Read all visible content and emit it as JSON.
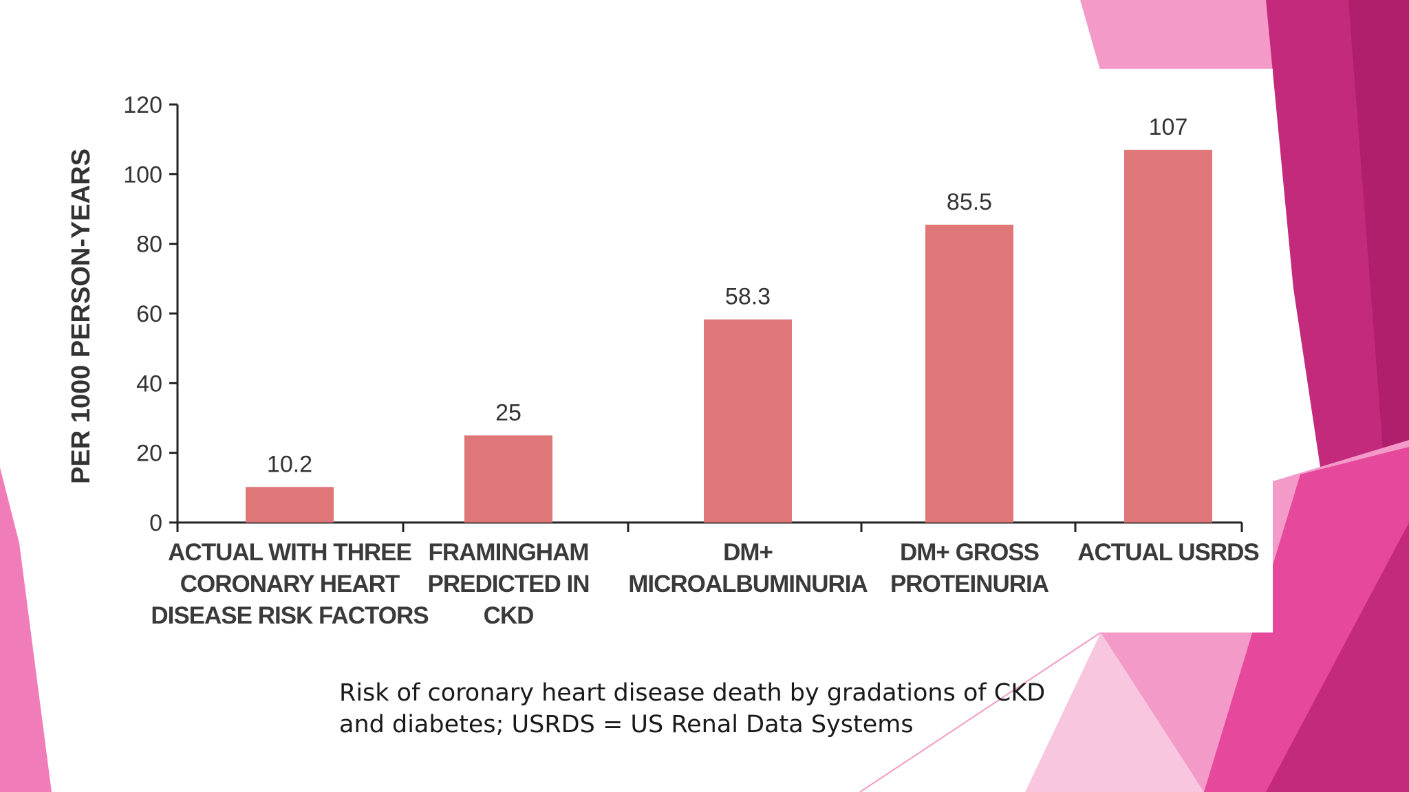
{
  "caption": {
    "line1": "Risk of coronary heart disease death by gradations of CKD",
    "line2": "and diabetes; USRDS = US Renal Data Systems"
  },
  "theme": {
    "bar_color": "#df7779",
    "accent_dark": "#bc2474",
    "accent_mid": "#e6489c",
    "accent_light": "#f39ac9",
    "accent_pale": "#f8c7df"
  },
  "chart_data": {
    "type": "bar",
    "ylabel": "PER 1000 PERSON-YEARS",
    "xlabel": "",
    "ylim": [
      0,
      120
    ],
    "yticks": [
      0,
      20,
      40,
      60,
      80,
      100,
      120
    ],
    "grid": false,
    "legend": "none",
    "categories": [
      [
        "ACTUAL WITH THREE",
        "CORONARY HEART",
        "DISEASE RISK FACTORS"
      ],
      [
        "FRAMINGHAM",
        "PREDICTED IN",
        "CKD"
      ],
      [
        "DM+",
        "MICROALBUMINURIA"
      ],
      [
        "DM+ GROSS",
        "PROTEINURIA"
      ],
      [
        "ACTUAL USRDS"
      ]
    ],
    "values": [
      10.2,
      25,
      58.3,
      85.5,
      107
    ],
    "value_labels": [
      "10.2",
      "25",
      "58.3",
      "85.5",
      "107"
    ]
  }
}
